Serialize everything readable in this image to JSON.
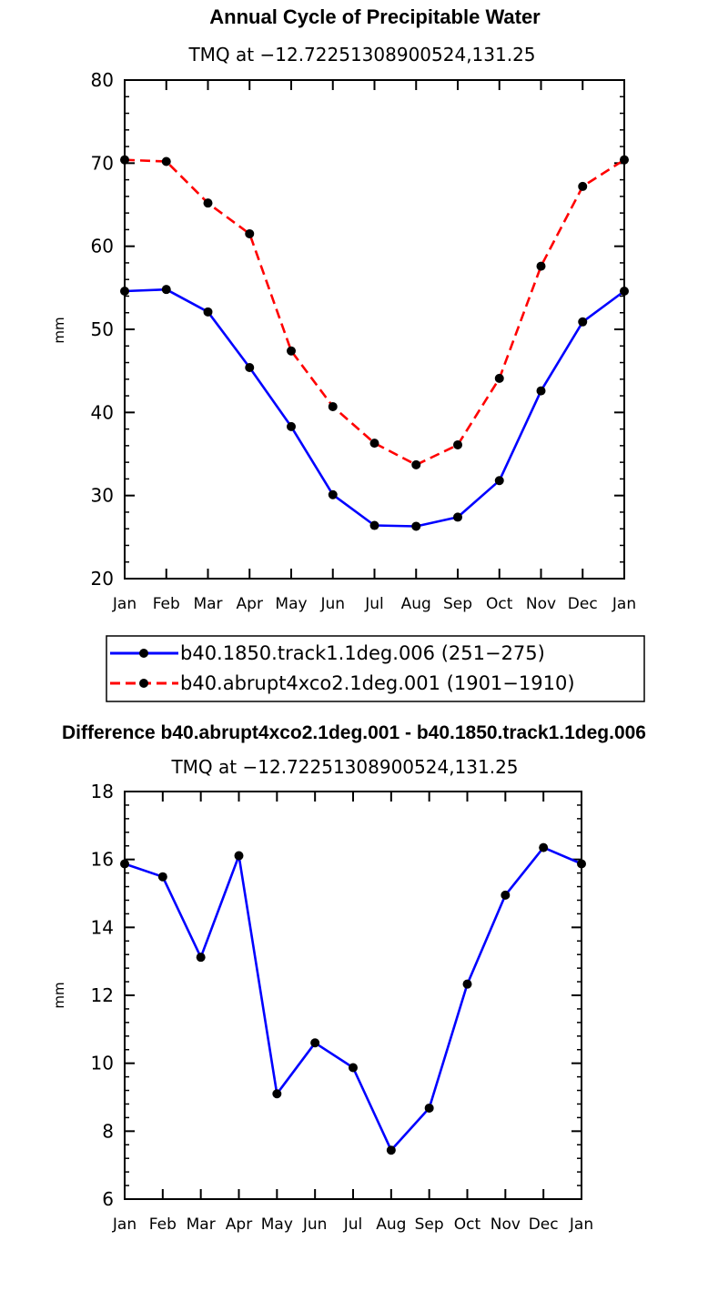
{
  "chart_data": [
    {
      "type": "line",
      "title": "Annual Cycle of Precipitable Water",
      "subtitle": "TMQ at −12.72251308900524,131.25",
      "xlabel": "",
      "ylabel": "mm",
      "ylim": [
        20,
        80
      ],
      "yticks": [
        "20",
        "30",
        "40",
        "50",
        "60",
        "70",
        "80"
      ],
      "categories": [
        "Jan",
        "Feb",
        "Mar",
        "Apr",
        "May",
        "Jun",
        "Jul",
        "Aug",
        "Sep",
        "Oct",
        "Nov",
        "Dec",
        "Jan"
      ],
      "grid": false,
      "legend_position": "bottom",
      "series": [
        {
          "name": "b40.1850.track1.1deg.006 (251−275)",
          "color": "#0000ff",
          "dash": "solid",
          "values": [
            54.6,
            54.8,
            52.1,
            45.4,
            38.3,
            30.1,
            26.4,
            26.3,
            27.4,
            31.8,
            42.6,
            50.9,
            54.6
          ]
        },
        {
          "name": "b40.abrupt4xco2.1deg.001 (1901−1910)",
          "color": "#ff0000",
          "dash": "dashed",
          "values": [
            70.4,
            70.2,
            65.2,
            61.5,
            47.4,
            40.7,
            36.3,
            33.7,
            36.1,
            44.1,
            57.6,
            67.2,
            70.4
          ]
        }
      ]
    },
    {
      "type": "line",
      "title": "Difference b40.abrupt4xco2.1deg.001 - b40.1850.track1.1deg.006",
      "subtitle": "TMQ at −12.72251308900524,131.25",
      "xlabel": "",
      "ylabel": "mm",
      "ylim": [
        6,
        18
      ],
      "yticks": [
        "6",
        "8",
        "10",
        "12",
        "14",
        "16",
        "18"
      ],
      "categories": [
        "Jan",
        "Feb",
        "Mar",
        "Apr",
        "May",
        "Jun",
        "Jul",
        "Aug",
        "Sep",
        "Oct",
        "Nov",
        "Dec",
        "Jan"
      ],
      "grid": false,
      "series": [
        {
          "name": "Difference",
          "color": "#0000ff",
          "dash": "solid",
          "values": [
            15.87,
            15.49,
            13.12,
            16.11,
            9.1,
            10.6,
            9.87,
            7.44,
            8.68,
            12.33,
            14.95,
            16.35,
            15.87
          ]
        }
      ]
    }
  ]
}
